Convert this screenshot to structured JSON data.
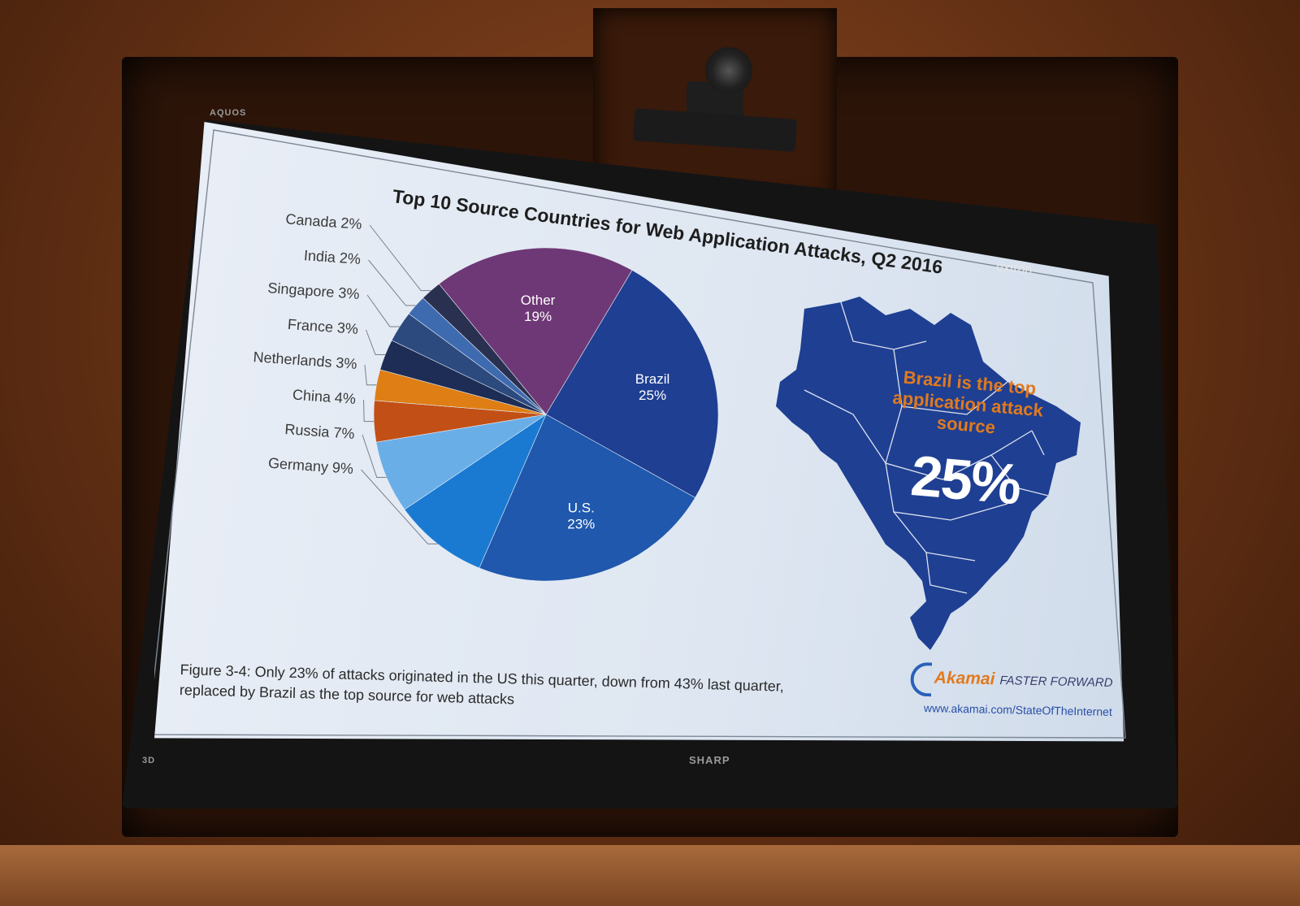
{
  "device": {
    "tv_brand": "SHARP",
    "tv_mode_badge": "3D",
    "tv_series": "AQUOS",
    "overlay_brand": "extron"
  },
  "slide": {
    "title": "Top 10 Source Countries for Web Application Attacks, Q2 2016",
    "caption_line1": "Figure 3-4: Only 23% of attacks originated in the US this quarter, down from 43% last quarter,",
    "caption_line2": "replaced by Brazil as the top source for web attacks",
    "callout_text": "Brazil is the top application attack source",
    "callout_value": "25%",
    "brand": {
      "name": "Akamai",
      "tagline": "FASTER FORWARD",
      "url": "www.akamai.com/StateOfTheInternet"
    }
  },
  "chart_data": {
    "type": "pie",
    "title": "Top 10 Source Countries for Web Application Attacks, Q2 2016",
    "slices": [
      {
        "name": "Brazil",
        "label": "Brazil 25%",
        "value": 25,
        "color": "#1e3f92"
      },
      {
        "name": "U.S.",
        "label": "U.S. 23%",
        "value": 23,
        "color": "#1f58ad"
      },
      {
        "name": "Germany",
        "label": "Germany 9%",
        "value": 9,
        "color": "#1a7ad2"
      },
      {
        "name": "Russia",
        "label": "Russia 7%",
        "value": 7,
        "color": "#6aaee8"
      },
      {
        "name": "China",
        "label": "China 4%",
        "value": 4,
        "color": "#c24f16"
      },
      {
        "name": "Netherlands",
        "label": "Netherlands 3%",
        "value": 3,
        "color": "#de7e14"
      },
      {
        "name": "France",
        "label": "France 3%",
        "value": 3,
        "color": "#1d2d55"
      },
      {
        "name": "Singapore",
        "label": "Singapore 3%",
        "value": 3,
        "color": "#2c4a7e"
      },
      {
        "name": "India",
        "label": "India 2%",
        "value": 2,
        "color": "#3e6ab0"
      },
      {
        "name": "Canada",
        "label": "Canada 2%",
        "value": 2,
        "color": "#2a3050"
      },
      {
        "name": "Other",
        "label": "Other 19%",
        "value": 19,
        "color": "#6e3876"
      }
    ],
    "inside_labels": [
      "Other",
      "Brazil",
      "U.S."
    ],
    "map_color": "#1e3f92"
  }
}
